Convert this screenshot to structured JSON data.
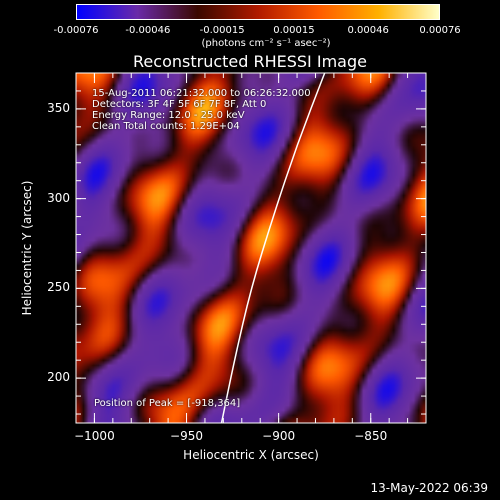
{
  "colorbar": {
    "tick_labels": [
      "-0.00076",
      "-0.00046",
      "-0.00015",
      "0.00015",
      "0.00046",
      "0.00076"
    ],
    "tick_values": [
      -0.00076,
      -0.00046,
      -0.00015,
      0.00015,
      0.00046,
      0.00076
    ],
    "units": "(photons cm⁻² s⁻¹ asec⁻²)",
    "colors": [
      "#0000ff",
      "#6a2aa8",
      "#3a0800",
      "#b01a00",
      "#ff5a00",
      "#ffb000",
      "#ffffc8"
    ]
  },
  "chart_data": {
    "type": "heatmap",
    "title": "Reconstructed RHESSI Image",
    "xlabel": "Heliocentric X (arcsec)",
    "ylabel": "Heliocentric Y (arcsec)",
    "xlim": [
      -1010,
      -820
    ],
    "ylim": [
      175,
      370
    ],
    "x_ticks": [
      -1000,
      -950,
      -900,
      -850
    ],
    "x_tick_labels": [
      "−1000",
      "−950",
      "−900",
      "−850"
    ],
    "y_ticks": [
      200,
      250,
      300,
      350
    ],
    "y_tick_labels": [
      "200",
      "250",
      "300",
      "350"
    ],
    "value_range": [
      -0.00076,
      0.00076
    ],
    "limb_curve": [
      [
        -931,
        175
      ],
      [
        -924,
        210
      ],
      [
        -915,
        250
      ],
      [
        -903,
        290
      ],
      [
        -890,
        330
      ],
      [
        -875,
        370
      ]
    ],
    "peak": [
      -918,
      364
    ],
    "annotations": {
      "time": "15-Aug-2011 06:21:32.000 to 06:26:32.000",
      "detectors": "Detectors: 3F 4F 5F 6F 7F 8F, Att 0",
      "energy": "Energy Range: 12.0 - 25.0 keV",
      "clean": "Clean     Total counts: 1.29E+04",
      "peak_label": "Position of Peak = [-918,364]"
    }
  },
  "footer": {
    "timestamp": "13-May-2022 06:39"
  }
}
